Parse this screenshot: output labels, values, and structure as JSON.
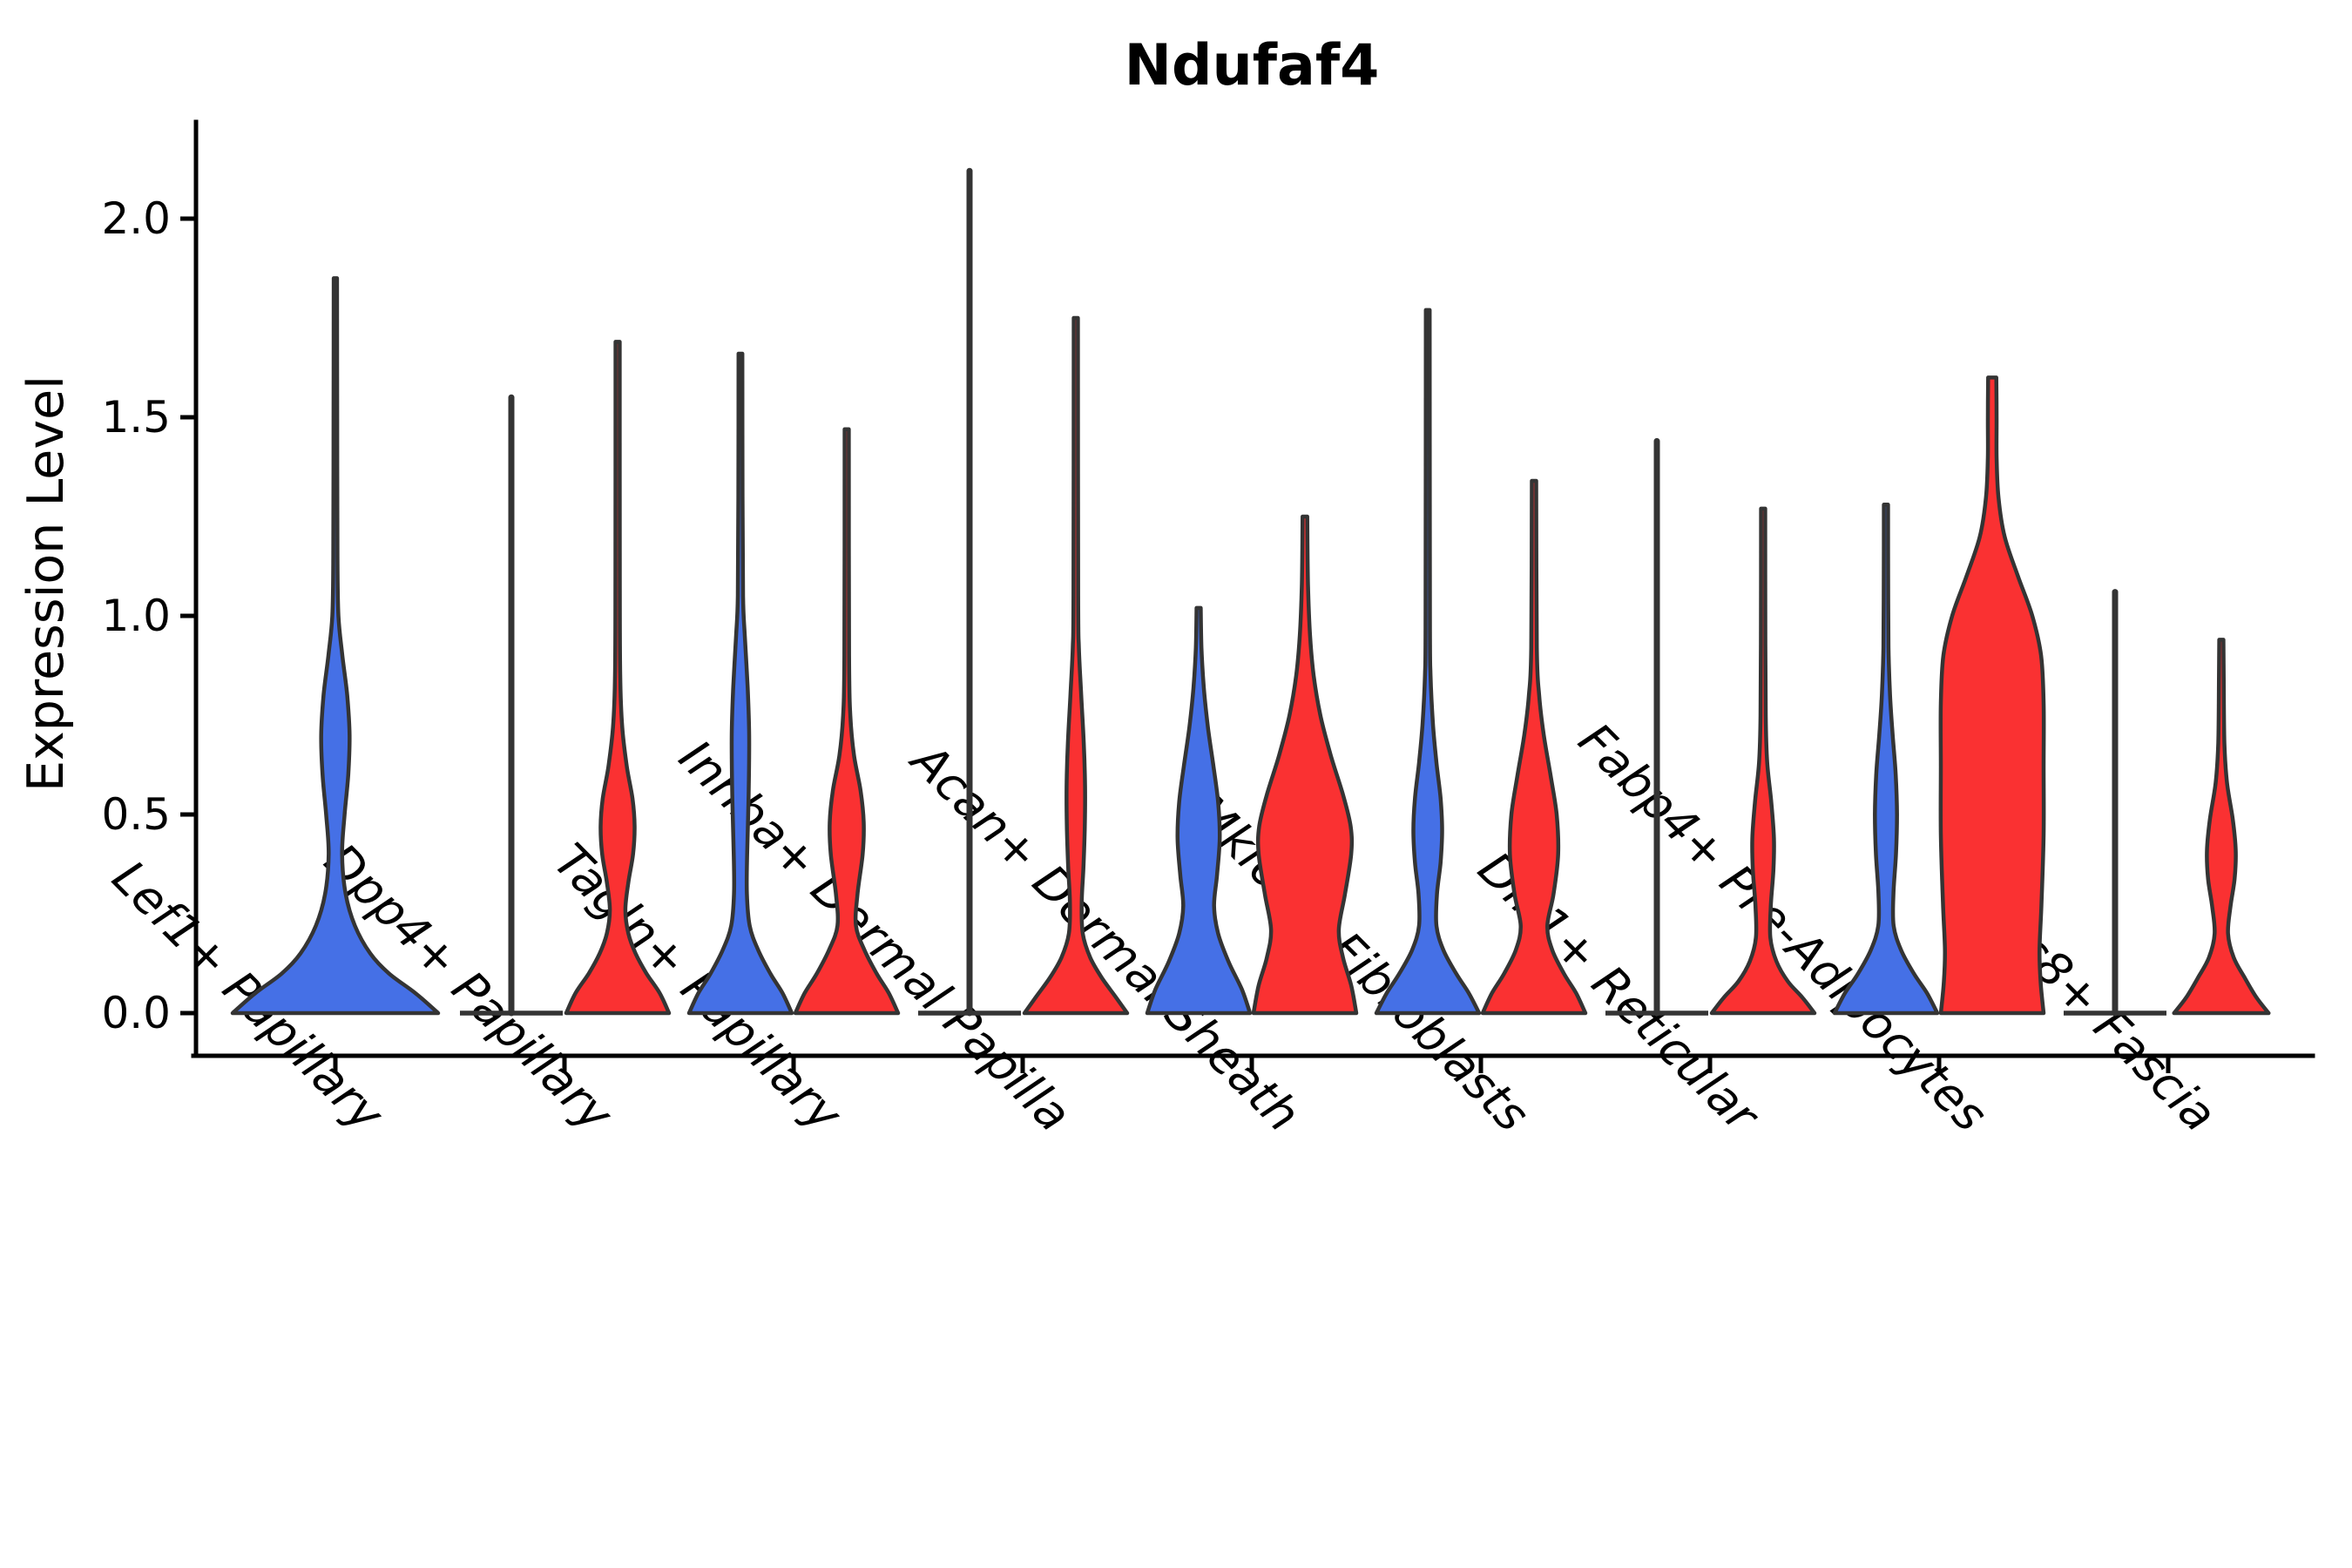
{
  "title": "Ndufaf4",
  "y_axis": {
    "label": "Expression Level",
    "tick_labels": [
      "0.0",
      "0.5",
      "1.0",
      "1.5",
      "2.0"
    ],
    "tick_values": [
      0.0,
      0.5,
      1.0,
      1.5,
      2.0
    ]
  },
  "x_axis": {
    "categories": [
      "Lef1+ Papillary",
      "Dpp4+ Papillary",
      "Tagln+ Papillary",
      "Inhba+ Dermal Papilla",
      "Acan+ Dermal Sheath",
      "Mki67+ Fibroblasts",
      "Dlk1+ Reticular",
      "Fabp4+ Pre-Adipocytes",
      "Plac8+ Fascia"
    ]
  },
  "colors": {
    "blue": "#4570E6",
    "red": "#FA3132",
    "edge": "#343434",
    "text": "#000000",
    "background": "#FFFFFF"
  },
  "chart_data": {
    "type": "violin",
    "title": "Ndufaf4",
    "xlabel": "",
    "ylabel": "Expression Level",
    "ylim": [
      -0.1,
      2.25
    ],
    "yticks": [
      0.0,
      0.5,
      1.0,
      1.5,
      2.0
    ],
    "ytick_labels": [
      "0.0",
      "0.5",
      "1.0",
      "1.5",
      "2.0"
    ],
    "grid": false,
    "legend": "none",
    "series_names": [
      "blue",
      "red"
    ],
    "categories": [
      "Lef1+ Papillary",
      "Dpp4+ Papillary",
      "Tagln+ Papillary",
      "Inhba+ Dermal Papilla",
      "Acan+ Dermal Sheath",
      "Mki67+ Fibroblasts",
      "Dlk1+ Reticular",
      "Fabp4+ Pre-Adipocytes",
      "Plac8+ Fascia"
    ],
    "groups": [
      {
        "category": "Lef1+ Papillary",
        "violins": [
          {
            "series": "blue",
            "kind": "violin",
            "offset": 0,
            "span": 2,
            "max": 1.85,
            "profile": [
              [
                0,
                1
              ],
              [
                0.05,
                0.78
              ],
              [
                0.1,
                0.52
              ],
              [
                0.15,
                0.34
              ],
              [
                0.22,
                0.19
              ],
              [
                0.3,
                0.1
              ],
              [
                0.4,
                0.065
              ],
              [
                0.5,
                0.09
              ],
              [
                0.6,
                0.125
              ],
              [
                0.7,
                0.138
              ],
              [
                0.8,
                0.115
              ],
              [
                0.9,
                0.068
              ],
              [
                1.0,
                0.03
              ],
              [
                1.15,
                0.02
              ],
              [
                1.5,
                0.018
              ],
              [
                1.85,
                0.016
              ]
            ]
          }
        ]
      },
      {
        "category": "Dpp4+ Papillary",
        "violins": [
          {
            "series": "blue",
            "kind": "line",
            "offset": -1,
            "span": 1,
            "max": 1.55
          },
          {
            "series": "red",
            "kind": "violin",
            "offset": 1,
            "span": 1,
            "max": 1.69,
            "profile": [
              [
                0,
                1
              ],
              [
                0.05,
                0.82
              ],
              [
                0.1,
                0.56
              ],
              [
                0.15,
                0.35
              ],
              [
                0.2,
                0.21
              ],
              [
                0.26,
                0.15
              ],
              [
                0.33,
                0.21
              ],
              [
                0.4,
                0.3
              ],
              [
                0.47,
                0.33
              ],
              [
                0.54,
                0.29
              ],
              [
                0.62,
                0.18
              ],
              [
                0.72,
                0.09
              ],
              [
                0.85,
                0.05
              ],
              [
                1.1,
                0.042
              ],
              [
                1.69,
                0.04
              ]
            ]
          }
        ]
      },
      {
        "category": "Tagln+ Papillary",
        "violins": [
          {
            "series": "blue",
            "kind": "violin",
            "offset": -1,
            "span": 1,
            "max": 1.66,
            "profile": [
              [
                0,
                1
              ],
              [
                0.05,
                0.82
              ],
              [
                0.1,
                0.58
              ],
              [
                0.16,
                0.34
              ],
              [
                0.22,
                0.18
              ],
              [
                0.3,
                0.125
              ],
              [
                0.4,
                0.13
              ],
              [
                0.55,
                0.16
              ],
              [
                0.7,
                0.17
              ],
              [
                0.82,
                0.14
              ],
              [
                0.95,
                0.085
              ],
              [
                1.05,
                0.05
              ],
              [
                1.3,
                0.04
              ],
              [
                1.66,
                0.038
              ]
            ]
          },
          {
            "series": "red",
            "kind": "violin",
            "offset": 1,
            "span": 1,
            "max": 1.47,
            "profile": [
              [
                0,
                1
              ],
              [
                0.05,
                0.82
              ],
              [
                0.1,
                0.58
              ],
              [
                0.16,
                0.34
              ],
              [
                0.22,
                0.18
              ],
              [
                0.3,
                0.21
              ],
              [
                0.4,
                0.31
              ],
              [
                0.48,
                0.33
              ],
              [
                0.56,
                0.27
              ],
              [
                0.65,
                0.14
              ],
              [
                0.75,
                0.07
              ],
              [
                0.9,
                0.046
              ],
              [
                1.47,
                0.04
              ]
            ]
          }
        ]
      },
      {
        "category": "Inhba+ Dermal Papilla",
        "violins": [
          {
            "series": "blue",
            "kind": "line",
            "offset": -1,
            "span": 1,
            "max": 2.12
          },
          {
            "series": "red",
            "kind": "violin",
            "offset": 1,
            "span": 1,
            "max": 1.75,
            "profile": [
              [
                0,
                1
              ],
              [
                0.04,
                0.78
              ],
              [
                0.09,
                0.5
              ],
              [
                0.14,
                0.28
              ],
              [
                0.2,
                0.135
              ],
              [
                0.28,
                0.115
              ],
              [
                0.37,
                0.15
              ],
              [
                0.47,
                0.175
              ],
              [
                0.57,
                0.18
              ],
              [
                0.68,
                0.155
              ],
              [
                0.8,
                0.105
              ],
              [
                0.92,
                0.06
              ],
              [
                1.05,
                0.045
              ],
              [
                1.75,
                0.04
              ]
            ]
          }
        ]
      },
      {
        "category": "Acan+ Dermal Sheath",
        "violins": [
          {
            "series": "blue",
            "kind": "violin",
            "offset": -1,
            "span": 1,
            "max": 1.02,
            "profile": [
              [
                0,
                1
              ],
              [
                0.06,
                0.84
              ],
              [
                0.13,
                0.58
              ],
              [
                0.2,
                0.38
              ],
              [
                0.27,
                0.3
              ],
              [
                0.35,
                0.36
              ],
              [
                0.44,
                0.41
              ],
              [
                0.53,
                0.38
              ],
              [
                0.62,
                0.29
              ],
              [
                0.72,
                0.18
              ],
              [
                0.82,
                0.1
              ],
              [
                0.92,
                0.055
              ],
              [
                1.02,
                0.04
              ]
            ]
          },
          {
            "series": "red",
            "kind": "violin",
            "offset": 1,
            "span": 1,
            "max": 1.25,
            "profile": [
              [
                0,
                1
              ],
              [
                0.07,
                0.9
              ],
              [
                0.14,
                0.74
              ],
              [
                0.21,
                0.66
              ],
              [
                0.3,
                0.78
              ],
              [
                0.4,
                0.9
              ],
              [
                0.47,
                0.89
              ],
              [
                0.55,
                0.74
              ],
              [
                0.65,
                0.5
              ],
              [
                0.75,
                0.3
              ],
              [
                0.85,
                0.17
              ],
              [
                0.95,
                0.1
              ],
              [
                1.08,
                0.06
              ],
              [
                1.25,
                0.045
              ]
            ]
          }
        ]
      },
      {
        "category": "Mki67+ Fibroblasts",
        "violins": [
          {
            "series": "blue",
            "kind": "violin",
            "offset": -1,
            "span": 1,
            "max": 1.77,
            "profile": [
              [
                0,
                1
              ],
              [
                0.05,
                0.8
              ],
              [
                0.1,
                0.55
              ],
              [
                0.16,
                0.3
              ],
              [
                0.22,
                0.17
              ],
              [
                0.3,
                0.18
              ],
              [
                0.38,
                0.25
              ],
              [
                0.46,
                0.28
              ],
              [
                0.54,
                0.25
              ],
              [
                0.63,
                0.17
              ],
              [
                0.73,
                0.1
              ],
              [
                0.85,
                0.055
              ],
              [
                1.0,
                0.042
              ],
              [
                1.77,
                0.038
              ]
            ]
          },
          {
            "series": "red",
            "kind": "violin",
            "offset": 1,
            "span": 1,
            "max": 1.34,
            "profile": [
              [
                0,
                1
              ],
              [
                0.05,
                0.82
              ],
              [
                0.1,
                0.58
              ],
              [
                0.16,
                0.35
              ],
              [
                0.22,
                0.26
              ],
              [
                0.3,
                0.38
              ],
              [
                0.4,
                0.47
              ],
              [
                0.5,
                0.44
              ],
              [
                0.6,
                0.32
              ],
              [
                0.7,
                0.19
              ],
              [
                0.8,
                0.1
              ],
              [
                0.92,
                0.055
              ],
              [
                1.34,
                0.042
              ]
            ]
          }
        ]
      },
      {
        "category": "Dlk1+ Reticular",
        "violins": [
          {
            "series": "blue",
            "kind": "line",
            "offset": -1,
            "span": 1,
            "max": 1.44
          },
          {
            "series": "red",
            "kind": "violin",
            "offset": 1,
            "span": 1,
            "max": 1.27,
            "profile": [
              [
                0,
                1
              ],
              [
                0.04,
                0.76
              ],
              [
                0.08,
                0.48
              ],
              [
                0.13,
                0.26
              ],
              [
                0.19,
                0.14
              ],
              [
                0.27,
                0.15
              ],
              [
                0.36,
                0.2
              ],
              [
                0.44,
                0.21
              ],
              [
                0.53,
                0.16
              ],
              [
                0.63,
                0.08
              ],
              [
                0.75,
                0.05
              ],
              [
                1.0,
                0.042
              ],
              [
                1.27,
                0.04
              ]
            ]
          }
        ]
      },
      {
        "category": "Fabp4+ Pre-Adipocytes",
        "violins": [
          {
            "series": "blue",
            "kind": "violin",
            "offset": -1,
            "span": 1,
            "max": 1.28,
            "profile": [
              [
                0,
                1
              ],
              [
                0.05,
                0.8
              ],
              [
                0.1,
                0.54
              ],
              [
                0.16,
                0.29
              ],
              [
                0.22,
                0.15
              ],
              [
                0.3,
                0.145
              ],
              [
                0.4,
                0.195
              ],
              [
                0.5,
                0.215
              ],
              [
                0.6,
                0.19
              ],
              [
                0.7,
                0.13
              ],
              [
                0.8,
                0.08
              ],
              [
                0.92,
                0.05
              ],
              [
                1.1,
                0.042
              ],
              [
                1.28,
                0.04
              ]
            ]
          },
          {
            "series": "red",
            "kind": "violin",
            "offset": 1,
            "span": 1,
            "max": 1.6,
            "profile": [
              [
                0,
                1
              ],
              [
                0.08,
                0.94
              ],
              [
                0.16,
                0.92
              ],
              [
                0.28,
                0.96
              ],
              [
                0.45,
                1
              ],
              [
                0.62,
                1
              ],
              [
                0.78,
                1
              ],
              [
                0.9,
                0.95
              ],
              [
                1.0,
                0.78
              ],
              [
                1.1,
                0.5
              ],
              [
                1.2,
                0.24
              ],
              [
                1.3,
                0.12
              ],
              [
                1.4,
                0.085
              ],
              [
                1.5,
                0.085
              ],
              [
                1.6,
                0.08
              ]
            ]
          }
        ]
      },
      {
        "category": "Plac8+ Fascia",
        "violins": [
          {
            "series": "blue",
            "kind": "line",
            "offset": -1,
            "span": 1,
            "max": 1.06
          },
          {
            "series": "red",
            "kind": "violin",
            "offset": 1,
            "span": 1,
            "max": 0.94,
            "profile": [
              [
                0,
                0.92
              ],
              [
                0.04,
                0.68
              ],
              [
                0.09,
                0.45
              ],
              [
                0.14,
                0.24
              ],
              [
                0.2,
                0.13
              ],
              [
                0.27,
                0.18
              ],
              [
                0.34,
                0.26
              ],
              [
                0.41,
                0.28
              ],
              [
                0.49,
                0.22
              ],
              [
                0.58,
                0.11
              ],
              [
                0.68,
                0.06
              ],
              [
                0.85,
                0.045
              ],
              [
                0.94,
                0.04
              ]
            ]
          }
        ]
      }
    ]
  }
}
